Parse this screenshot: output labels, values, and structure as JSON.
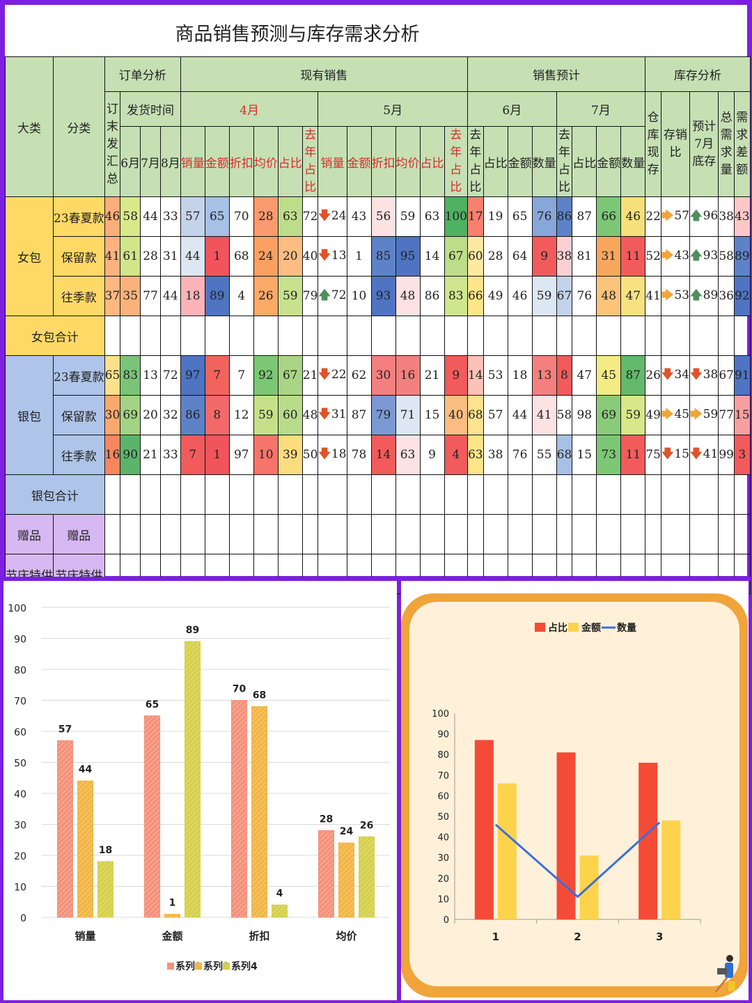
{
  "title": "商品销售预测与库存需求分析",
  "table": {
    "h_dalei": "大类",
    "h_fenlei": "分类",
    "h_order": "订单分析",
    "h_current": "现有销售",
    "h_forecast": "销售预计",
    "h_stock": "库存分析",
    "h_ordersum": "订末发汇总",
    "h_ship": "发货时间",
    "h_apr": "4月",
    "h_may": "5月",
    "h_jun": "6月",
    "h_jul": "7月",
    "h_wh": "仓库现存",
    "h_ratio": "存销比",
    "h_est": "预计7月底存",
    "h_total": "总需求量",
    "h_gap": "需求差额",
    "sub_ship": [
      "6月",
      "7月",
      "8月"
    ],
    "sub_apr": [
      "销量",
      "金额",
      "折扣",
      "均价",
      "占比",
      "去年占比"
    ],
    "sub_may": [
      "销量",
      "金额",
      "折扣",
      "均价",
      "占比",
      "去年占比"
    ],
    "sub_jun": [
      "去年占比",
      "占比",
      "金额",
      "数量"
    ],
    "sub_jul": [
      "去年占比",
      "占比",
      "金额",
      "数量"
    ],
    "group1": "女包",
    "group1_total": "女包合计",
    "group2": "银包",
    "group2_total": "银包合计",
    "gift_a": "赠品",
    "gift_b": "赠品",
    "fest_a": "节庆特供",
    "fest_b": "节庆特供",
    "rows": [
      {
        "name": "23春夏款",
        "values": [
          "46",
          "58",
          "44",
          "33",
          "57",
          "65",
          "70",
          "28",
          "63",
          "72",
          "24",
          "43",
          "56",
          "59",
          "63",
          "100",
          "17",
          "19",
          "65",
          "76",
          "86",
          "87",
          "66",
          "46",
          "22",
          "57",
          "96",
          "38",
          "43"
        ],
        "arrows": {
          "25": "right",
          "26": "up",
          "10": "down"
        }
      },
      {
        "name": "保留款",
        "values": [
          "41",
          "61",
          "28",
          "31",
          "44",
          "1",
          "68",
          "24",
          "20",
          "40",
          "13",
          "1",
          "85",
          "95",
          "14",
          "67",
          "60",
          "28",
          "64",
          "9",
          "38",
          "81",
          "31",
          "11",
          "52",
          "43",
          "93",
          "58",
          "89"
        ],
        "arrows": {
          "25": "right",
          "26": "up",
          "10": "down"
        }
      },
      {
        "name": "往季款",
        "values": [
          "37",
          "35",
          "77",
          "44",
          "18",
          "89",
          "4",
          "26",
          "59",
          "79",
          "72",
          "10",
          "93",
          "48",
          "86",
          "83",
          "66",
          "49",
          "46",
          "59",
          "67",
          "76",
          "48",
          "47",
          "41",
          "53",
          "89",
          "36",
          "92"
        ],
        "arrows": {
          "25": "right",
          "26": "up",
          "10": "up"
        }
      },
      {
        "name": "23春夏款",
        "values": [
          "65",
          "83",
          "13",
          "72",
          "97",
          "7",
          "7",
          "92",
          "67",
          "21",
          "22",
          "62",
          "30",
          "16",
          "21",
          "9",
          "14",
          "53",
          "18",
          "13",
          "8",
          "47",
          "45",
          "87",
          "26",
          "34",
          "38",
          "67",
          "91"
        ],
        "arrows": {
          "25": "down",
          "26": "down",
          "10": "down"
        }
      },
      {
        "name": "保留款",
        "values": [
          "30",
          "69",
          "20",
          "32",
          "86",
          "8",
          "12",
          "59",
          "60",
          "48",
          "31",
          "87",
          "79",
          "71",
          "15",
          "40",
          "68",
          "57",
          "44",
          "41",
          "58",
          "98",
          "69",
          "59",
          "49",
          "45",
          "59",
          "77",
          "15"
        ],
        "arrows": {
          "25": "right",
          "26": "right",
          "10": "down"
        }
      },
      {
        "name": "往季款",
        "values": [
          "16",
          "90",
          "21",
          "33",
          "7",
          "1",
          "97",
          "10",
          "39",
          "50",
          "18",
          "78",
          "14",
          "63",
          "9",
          "4",
          "63",
          "38",
          "76",
          "55",
          "68",
          "15",
          "73",
          "11",
          "75",
          "15",
          "41",
          "99",
          "3"
        ],
        "arrows": {
          "25": "down",
          "26": "down",
          "10": "down"
        }
      }
    ],
    "cell_colors": [
      [
        "#fbae7b",
        "#d9e98a",
        "#fff",
        "#fff",
        "#c5d3ea",
        "#a7c0e6",
        "#fff",
        "#fb9a6e",
        "#bedd8a",
        "#fff",
        "#fff",
        "#fff",
        "#fde2e4",
        "#fff",
        "#fff",
        "#4fb163",
        "#f8806e",
        "#fff",
        "#fff",
        "#87a6d9",
        "#5d82c8",
        "#fff",
        "#7cc775",
        "#f7e07a",
        "#fff",
        "#fff",
        "#fff",
        "#fff",
        "#fcc8c6"
      ],
      [
        "#fcb181",
        "#d1e58a",
        "#fff",
        "#fff",
        "#dde6f3",
        "#f1545b",
        "#fff",
        "#fba062",
        "#fbbd82",
        "#fff",
        "#fff",
        "#fff",
        "#5d82c8",
        "#4e74c2",
        "#fff",
        "#bedd8a",
        "#fde9a2",
        "#fff",
        "#fff",
        "#f25b5c",
        "#fbd0d3",
        "#fff",
        "#f9a65d",
        "#f25b5c",
        "#fff",
        "#fff",
        "#fff",
        "#fff",
        "#5d82c8"
      ],
      [
        "#fdb880",
        "#fbb27a",
        "#fff",
        "#fff",
        "#fbb3b8",
        "#4e74c2",
        "#fff",
        "#fba966",
        "#c7e18d",
        "#fff",
        "#fff",
        "#fff",
        "#4e74c2",
        "#fde2e4",
        "#fff",
        "#cfe58e",
        "#fde58a",
        "#fff",
        "#fff",
        "#dde6f3",
        "#c4d2ea",
        "#fff",
        "#fbc47a",
        "#f8e27f",
        "#fff",
        "#fff",
        "#fff",
        "#fff",
        "#4e74c2"
      ],
      [
        "#fde08a",
        "#79c478",
        "#fff",
        "#fff",
        "#4e74c2",
        "#f3635e",
        "#fff",
        "#7cc775",
        "#a9d585",
        "#fff",
        "#fff",
        "#fff",
        "#f3807f",
        "#f3807f",
        "#fff",
        "#f25b5c",
        "#fcc2b7",
        "#fff",
        "#fff",
        "#f3807f",
        "#f25b5c",
        "#fff",
        "#f3ec84",
        "#63b96b",
        "#fff",
        "#fff",
        "#fff",
        "#fff",
        "#4e74c2"
      ],
      [
        "#fba86f",
        "#a3d384",
        "#fff",
        "#fff",
        "#5d82c8",
        "#f3696a",
        "#fff",
        "#c6e08a",
        "#b8dc8a",
        "#fff",
        "#fff",
        "#fff",
        "#7c98d3",
        "#dde6f3",
        "#fff",
        "#fbbd82",
        "#fde28f",
        "#fff",
        "#fff",
        "#fde2e4",
        "#fff",
        "#fff",
        "#8acb7a",
        "#d8e78a",
        "#fff",
        "#fff",
        "#fff",
        "#fff",
        "#f8a0a0"
      ],
      [
        "#f7865f",
        "#5cb46a",
        "#fff",
        "#fff",
        "#f25b5c",
        "#f1545b",
        "#fff",
        "#f7746a",
        "#fbdc7e",
        "#fff",
        "#fff",
        "#fff",
        "#f25b5c",
        "#fde2e4",
        "#fff",
        "#f25b5c",
        "#fde58a",
        "#fff",
        "#fff",
        "#fff",
        "#a7c0e6",
        "#fff",
        "#7cc775",
        "#f25b5c",
        "#fff",
        "#fff",
        "#fff",
        "#fff",
        "#f25b5c"
      ]
    ]
  },
  "chart_data": [
    {
      "type": "bar",
      "categories": [
        "销量",
        "金额",
        "折扣",
        "均价"
      ],
      "series": [
        {
          "name": "系列2",
          "values": [
            57,
            65,
            70,
            28
          ],
          "color": "#f4917a"
        },
        {
          "name": "系列3",
          "values": [
            44,
            1,
            68,
            24
          ],
          "color": "#f2b544"
        },
        {
          "name": "系列4",
          "values": [
            18,
            89,
            4,
            26
          ],
          "color": "#d6d04a"
        }
      ],
      "ylim": [
        0,
        100
      ],
      "yticks": [
        "0",
        "10",
        "20",
        "30",
        "40",
        "50",
        "60",
        "70",
        "80",
        "90",
        "100"
      ],
      "grid": true,
      "legend": "bottom",
      "data_labels": true
    },
    {
      "type": "bar",
      "categories": [
        "1",
        "2",
        "3"
      ],
      "series": [
        {
          "name": "占比",
          "kind": "bar",
          "values": [
            87,
            81,
            76
          ],
          "color": "#f44b36"
        },
        {
          "name": "金额",
          "kind": "bar",
          "values": [
            66,
            31,
            48
          ],
          "color": "#fdd34b"
        },
        {
          "name": "数量",
          "kind": "line",
          "values": [
            46,
            11,
            47
          ],
          "color": "#3b6fd8"
        }
      ],
      "ylim": [
        0,
        100
      ],
      "yticks": [
        "0",
        "10",
        "20",
        "30",
        "40",
        "50",
        "60",
        "70",
        "80",
        "90",
        "100"
      ],
      "legend": "top"
    }
  ]
}
